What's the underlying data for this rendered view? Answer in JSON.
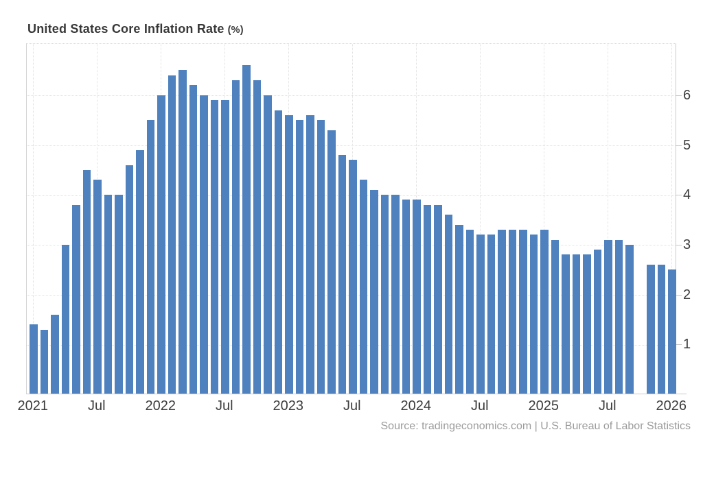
{
  "title": {
    "text": "United States Core Inflation Rate",
    "unit": "(%)"
  },
  "source": {
    "prefix": "Source: ",
    "site": "tradingeconomics.com",
    "suffix": " | U.S. Bureau of Labor Statistics"
  },
  "colors": {
    "bar": "#4E81BD",
    "grid": "#e0e0e0",
    "axis": "#c9c9c9",
    "tick_text": "#3d3d3d",
    "title_text": "#383838",
    "source_text": "#9b9b9b",
    "background": "#ffffff"
  },
  "chart_data": {
    "type": "bar",
    "title": "United States Core Inflation Rate (%)",
    "ylabel": "",
    "xlabel": "",
    "unit": "percent",
    "frequency": "monthly",
    "ylim": [
      0,
      7.05
    ],
    "y_ticks": [
      1,
      2,
      3,
      4,
      5,
      6
    ],
    "y_axis_position": "right",
    "grid": true,
    "legend": null,
    "x_tick_labels": [
      "2021",
      "Jul",
      "2022",
      "Jul",
      "2023",
      "Jul",
      "2024",
      "Jul",
      "2025",
      "Jul",
      "2026"
    ],
    "x_tick_month_indices": [
      0,
      6,
      12,
      18,
      24,
      30,
      36,
      42,
      48,
      54,
      60
    ],
    "missing_months": [
      "2025-10"
    ],
    "points": [
      {
        "m": "2021-01",
        "v": 1.4
      },
      {
        "m": "2021-02",
        "v": 1.3
      },
      {
        "m": "2021-03",
        "v": 1.6
      },
      {
        "m": "2021-04",
        "v": 3.0
      },
      {
        "m": "2021-05",
        "v": 3.8
      },
      {
        "m": "2021-06",
        "v": 4.5
      },
      {
        "m": "2021-07",
        "v": 4.3
      },
      {
        "m": "2021-08",
        "v": 4.0
      },
      {
        "m": "2021-09",
        "v": 4.0
      },
      {
        "m": "2021-10",
        "v": 4.6
      },
      {
        "m": "2021-11",
        "v": 4.9
      },
      {
        "m": "2021-12",
        "v": 5.5
      },
      {
        "m": "2022-01",
        "v": 6.0
      },
      {
        "m": "2022-02",
        "v": 6.4
      },
      {
        "m": "2022-03",
        "v": 6.5
      },
      {
        "m": "2022-04",
        "v": 6.2
      },
      {
        "m": "2022-05",
        "v": 6.0
      },
      {
        "m": "2022-06",
        "v": 5.9
      },
      {
        "m": "2022-07",
        "v": 5.9
      },
      {
        "m": "2022-08",
        "v": 6.3
      },
      {
        "m": "2022-09",
        "v": 6.6
      },
      {
        "m": "2022-10",
        "v": 6.3
      },
      {
        "m": "2022-11",
        "v": 6.0
      },
      {
        "m": "2022-12",
        "v": 5.7
      },
      {
        "m": "2023-01",
        "v": 5.6
      },
      {
        "m": "2023-02",
        "v": 5.5
      },
      {
        "m": "2023-03",
        "v": 5.6
      },
      {
        "m": "2023-04",
        "v": 5.5
      },
      {
        "m": "2023-05",
        "v": 5.3
      },
      {
        "m": "2023-06",
        "v": 4.8
      },
      {
        "m": "2023-07",
        "v": 4.7
      },
      {
        "m": "2023-08",
        "v": 4.3
      },
      {
        "m": "2023-09",
        "v": 4.1
      },
      {
        "m": "2023-10",
        "v": 4.0
      },
      {
        "m": "2023-11",
        "v": 4.0
      },
      {
        "m": "2023-12",
        "v": 3.9
      },
      {
        "m": "2024-01",
        "v": 3.9
      },
      {
        "m": "2024-02",
        "v": 3.8
      },
      {
        "m": "2024-03",
        "v": 3.8
      },
      {
        "m": "2024-04",
        "v": 3.6
      },
      {
        "m": "2024-05",
        "v": 3.4
      },
      {
        "m": "2024-06",
        "v": 3.3
      },
      {
        "m": "2024-07",
        "v": 3.2
      },
      {
        "m": "2024-08",
        "v": 3.2
      },
      {
        "m": "2024-09",
        "v": 3.3
      },
      {
        "m": "2024-10",
        "v": 3.3
      },
      {
        "m": "2024-11",
        "v": 3.3
      },
      {
        "m": "2024-12",
        "v": 3.2
      },
      {
        "m": "2025-01",
        "v": 3.3
      },
      {
        "m": "2025-02",
        "v": 3.1
      },
      {
        "m": "2025-03",
        "v": 2.8
      },
      {
        "m": "2025-04",
        "v": 2.8
      },
      {
        "m": "2025-05",
        "v": 2.8
      },
      {
        "m": "2025-06",
        "v": 2.9
      },
      {
        "m": "2025-07",
        "v": 3.1
      },
      {
        "m": "2025-08",
        "v": 3.1
      },
      {
        "m": "2025-09",
        "v": 3.0
      },
      {
        "m": "2025-10",
        "v": null
      },
      {
        "m": "2025-11",
        "v": 2.6
      },
      {
        "m": "2025-12",
        "v": 2.6
      },
      {
        "m": "2026-01",
        "v": 2.5
      }
    ]
  }
}
